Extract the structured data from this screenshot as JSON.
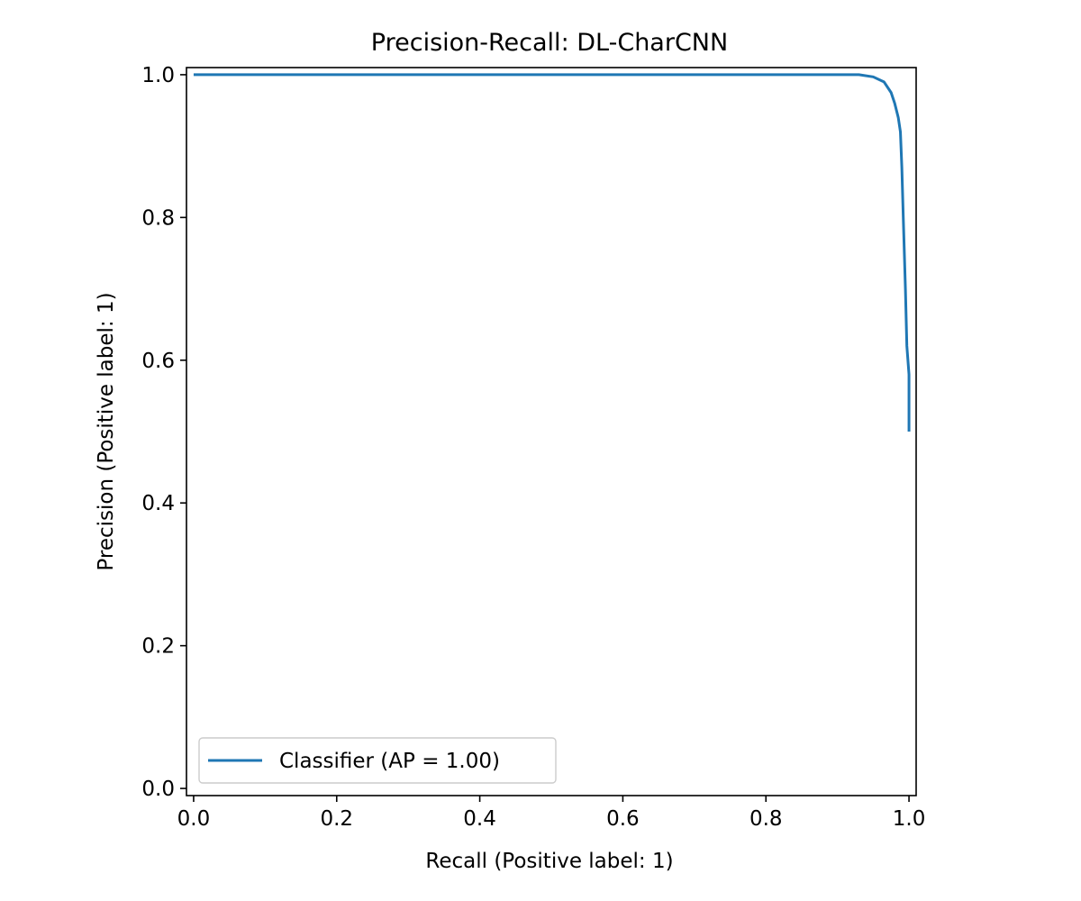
{
  "chart_data": {
    "type": "line",
    "title": "Precision-Recall: DL-CharCNN",
    "xlabel": "Recall (Positive label: 1)",
    "ylabel": "Precision (Positive label: 1)",
    "xlim": [
      -0.01,
      1.01
    ],
    "ylim": [
      -0.01,
      1.01
    ],
    "grid": false,
    "legend_position": "lower-left",
    "x_ticks": [
      "0.0",
      "0.2",
      "0.4",
      "0.6",
      "0.8",
      "1.0"
    ],
    "y_ticks": [
      "0.0",
      "0.2",
      "0.4",
      "0.6",
      "0.8",
      "1.0"
    ],
    "series": [
      {
        "name": "Classifier (AP = 1.00)",
        "color": "#1f77b4",
        "x": [
          0.0,
          0.5,
          0.93,
          0.95,
          0.965,
          0.975,
          0.98,
          0.985,
          0.988,
          0.99,
          0.992,
          0.995,
          0.997,
          1.0,
          1.0
        ],
        "y": [
          1.0,
          1.0,
          1.0,
          0.997,
          0.99,
          0.975,
          0.96,
          0.94,
          0.92,
          0.87,
          0.8,
          0.7,
          0.62,
          0.58,
          0.5
        ]
      }
    ]
  }
}
